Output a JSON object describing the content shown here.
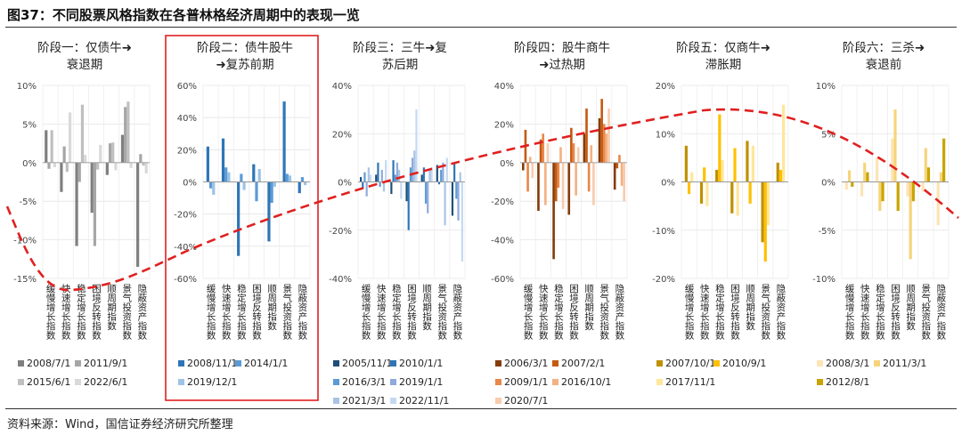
{
  "figure_title": "图37：不同股票风格指数在各普林格经济周期中的表现一览",
  "source_text": "资料来源：Wind，国信证券经济研究所整理",
  "highlight_color": "#e02020",
  "cycle_curve_color": "#e02020",
  "chart_data": [
    {
      "type": "bar",
      "title_lines": [
        "阶段一：仅债牛➜",
        "衰退期"
      ],
      "ylim": [
        -15,
        10
      ],
      "yticks": [
        10,
        5,
        0,
        -5,
        -10,
        -15
      ],
      "ytick_labels": [
        "10%",
        "5%",
        "0%",
        "-5%",
        "-10%",
        "-15%"
      ],
      "categories": [
        "缓慢增长指数",
        "快速增长指数",
        "稳定增长指数",
        "困境反转指数",
        "顺周期指数",
        "景气投资指数",
        "隐蔽资产指数"
      ],
      "series": [
        {
          "name": "2008/7/1",
          "color": "#7f7f7f",
          "values": [
            4.2,
            -3.8,
            -10.8,
            -6.5,
            -1.6,
            3.6,
            -13.5
          ]
        },
        {
          "name": "2011/9/1",
          "color": "#a6a6a6",
          "values": [
            -0.8,
            2.1,
            -2.5,
            -10.8,
            2.5,
            7.2,
            1.1
          ]
        },
        {
          "name": "2015/6/1",
          "color": "#bfbfbf",
          "values": [
            4.2,
            -1.2,
            7.5,
            -0.9,
            2.6,
            7.9,
            -0.4
          ]
        },
        {
          "name": "2022/6/1",
          "color": "#d9d9d9",
          "values": [
            -0.6,
            6.5,
            1.0,
            2.3,
            -1.0,
            -0.7,
            -1.4
          ]
        }
      ]
    },
    {
      "type": "bar",
      "title_lines": [
        "阶段二：债牛股牛",
        "➜复苏前期"
      ],
      "ylim": [
        -60,
        60
      ],
      "yticks": [
        60,
        40,
        20,
        0,
        -20,
        -40,
        -60
      ],
      "ytick_labels": [
        "60%",
        "40%",
        "20%",
        "0%",
        "-20%",
        "-40%",
        "-60%"
      ],
      "categories": [
        "缓慢增长指数",
        "快速增长指数",
        "稳定增长指数",
        "困境反转指数",
        "顺周期指数",
        "景气投资指数",
        "隐蔽资产指数"
      ],
      "series": [
        {
          "name": "2008/11/1",
          "color": "#2e75b6",
          "values": [
            22,
            27,
            -46,
            11,
            -37,
            50,
            -7
          ]
        },
        {
          "name": "2014/1/1",
          "color": "#5b9bd5",
          "values": [
            -4,
            9,
            5,
            -12,
            -13,
            5,
            3
          ]
        },
        {
          "name": "2019/12/1",
          "color": "#9dc3e6",
          "values": [
            -8,
            6,
            -5,
            8,
            -3,
            4,
            -2
          ]
        }
      ]
    },
    {
      "type": "bar",
      "title_lines": [
        "阶段三：三牛➜复",
        "苏后期"
      ],
      "ylim": [
        -40,
        40
      ],
      "yticks": [
        40,
        20,
        0,
        -20,
        -40
      ],
      "ytick_labels": [
        "40%",
        "20%",
        "0%",
        "-20%",
        "-40%"
      ],
      "categories": [
        "缓慢增长指数",
        "快速增长指数",
        "稳定增长指数",
        "困境反转指数",
        "顺周期指数",
        "景气投资指数",
        "隐蔽资产指数"
      ],
      "series": [
        {
          "name": "2005/11/1",
          "color": "#1f4e79",
          "values": [
            2,
            3,
            -5,
            -8,
            3,
            7,
            -14
          ]
        },
        {
          "name": "2010/1/1",
          "color": "#2e75b6",
          "values": [
            -3,
            8,
            9,
            -20,
            6,
            -1,
            8
          ]
        },
        {
          "name": "2016/3/1",
          "color": "#5b9bd5",
          "values": [
            4,
            -2,
            3,
            6,
            -9,
            5,
            -7
          ]
        },
        {
          "name": "2019/1/1",
          "color": "#8faadc",
          "values": [
            -6,
            5,
            8,
            10,
            -13,
            8,
            -16
          ]
        },
        {
          "name": "2021/3/1",
          "color": "#a9c4e4",
          "values": [
            6,
            -4,
            5,
            13,
            5,
            -18,
            4
          ]
        },
        {
          "name": "2022/11/1",
          "color": "#c5d9f1",
          "values": [
            3,
            9,
            -7,
            30,
            6,
            10,
            -33
          ]
        }
      ]
    },
    {
      "type": "bar",
      "title_lines": [
        "阶段四：股牛商牛",
        "➜过热期"
      ],
      "ylim": [
        -60,
        40
      ],
      "yticks": [
        40,
        20,
        0,
        -20,
        -40,
        -60
      ],
      "ytick_labels": [
        "40%",
        "20%",
        "0%",
        "-20%",
        "-40%",
        "-60%"
      ],
      "categories": [
        "缓慢增长指数",
        "快速增长指数",
        "稳定增长指数",
        "困境反转指数",
        "顺周期指数",
        "景气投资指数",
        "隐蔽资产指数"
      ],
      "series": [
        {
          "name": "2006/3/1",
          "color": "#843c0c",
          "values": [
            -4,
            -25,
            -50,
            -27,
            15,
            23,
            -14
          ]
        },
        {
          "name": "2007/2/1",
          "color": "#c55a11",
          "values": [
            17,
            12,
            -20,
            18,
            28,
            33,
            -3
          ]
        },
        {
          "name": "2009/1/1",
          "color": "#e9874a",
          "values": [
            -15,
            15,
            -13,
            10,
            -15,
            20,
            4
          ]
        },
        {
          "name": "2016/10/1",
          "color": "#f4b183",
          "values": [
            3,
            -22,
            8,
            -17,
            9,
            15,
            -12
          ]
        },
        {
          "name": "2020/7/1",
          "color": "#f8cbad",
          "values": [
            -8,
            10,
            -24,
            8,
            -22,
            28,
            -20
          ]
        }
      ]
    },
    {
      "type": "bar",
      "title_lines": [
        "阶段五：仅商牛➜",
        "滞胀期"
      ],
      "ylim": [
        -20,
        20
      ],
      "yticks": [
        20,
        10,
        0,
        -10,
        -20
      ],
      "ytick_labels": [
        "20%",
        "10%",
        "0%",
        "-10%",
        "-20%"
      ],
      "categories": [
        "缓慢增长指数",
        "快速增长指数",
        "稳定增长指数",
        "困境反转指数",
        "顺周期指数",
        "景气投资指数",
        "隐蔽资产指数"
      ],
      "series": [
        {
          "name": "2007/10/1",
          "color": "#bf9000",
          "values": [
            7.5,
            -4.5,
            2.5,
            -6.5,
            8.5,
            -12.5,
            4.0
          ]
        },
        {
          "name": "2010/9/1",
          "color": "#ffc000",
          "values": [
            -2.5,
            3.0,
            14.0,
            7.0,
            -4.5,
            -16.5,
            2.5
          ]
        },
        {
          "name": "2017/11/1",
          "color": "#ffe699",
          "values": [
            2.0,
            -5.0,
            4.5,
            -7.0,
            7.5,
            -9.0,
            16.0
          ]
        }
      ]
    },
    {
      "type": "bar",
      "title_lines": [
        "阶段六：三杀➜",
        "衰退前"
      ],
      "ylim": [
        -10,
        10
      ],
      "yticks": [
        10,
        5,
        0,
        -5,
        -10
      ],
      "ytick_labels": [
        "10%",
        "5%",
        "0%",
        "-5%",
        "-10%"
      ],
      "categories": [
        "缓慢增长指数",
        "快速增长指数",
        "稳定增长指数",
        "困境反转指数",
        "顺周期指数",
        "景气投资指数",
        "隐蔽资产指数"
      ],
      "series": [
        {
          "name": "2008/3/1",
          "color": "#fce4b6",
          "values": [
            -0.8,
            -1.5,
            2.5,
            4.5,
            -1.5,
            -1.0,
            -4.5
          ]
        },
        {
          "name": "2011/3/1",
          "color": "#f7d47a",
          "values": [
            1.2,
            2.0,
            -3.0,
            7.5,
            -8.0,
            3.5,
            1.0
          ]
        },
        {
          "name": "2012/8/1",
          "color": "#c9a400",
          "values": [
            -0.5,
            1.0,
            -2.0,
            -3.0,
            -2.0,
            1.5,
            4.5
          ]
        }
      ]
    }
  ]
}
